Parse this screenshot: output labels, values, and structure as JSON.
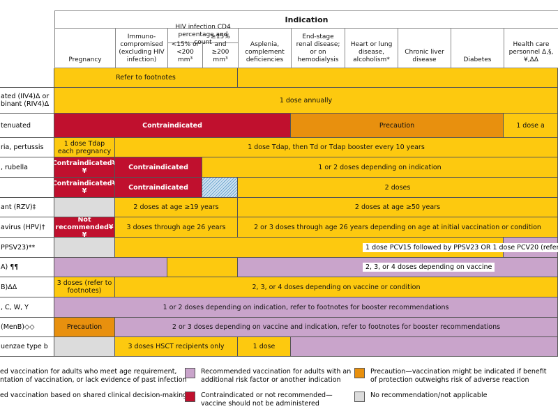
{
  "header": {
    "title": "Indication",
    "hiv_group": "HIV infection CD4 percentage and count"
  },
  "columns": [
    "Pregnancy",
    "Immuno-compromised (excluding HIV infection)",
    "<15% or <200 mm³",
    "≥15% and ≥200 mm³",
    "Asplenia, complement deficiencies",
    "End-stage renal disease; or on hemodialysis",
    "Heart or lung disease, alcoholism*",
    "Chronic liver disease",
    "Diabetes",
    "Health care personnel Δ,§,¥,ΔΔ"
  ],
  "rows": [
    {
      "cells": [
        {
          "text": "Refer to footnotes",
          "span": 4,
          "fill": "yellow"
        },
        {
          "span": 6,
          "fill": "yellow"
        }
      ]
    },
    {
      "label": [
        "ated (IIV4)Δ or",
        "binant (RIV4)Δ"
      ],
      "cells": [
        {
          "text": "1 dose annually",
          "span": 10,
          "fill": "yellow"
        }
      ]
    },
    {
      "label": [
        "tenuated"
      ],
      "cells": [
        {
          "text": "Contraindicated",
          "span": 5,
          "fill": "red"
        },
        {
          "text": "Precaution",
          "span": 4,
          "fill": "orange"
        },
        {
          "text": "1 dose a",
          "span": 1,
          "fill": "yellow"
        }
      ]
    },
    {
      "label": [
        "ria, pertussis"
      ],
      "cells": [
        {
          "text": "1 dose Tdap each pregnancy",
          "span": 1,
          "fill": "yellow"
        },
        {
          "text": "1 dose Tdap, then Td or Tdap booster every 10 years",
          "span": 9,
          "fill": "yellow"
        }
      ]
    },
    {
      "label": [
        ", rubella"
      ],
      "cells": [
        {
          "text": "Contraindicated¥¥",
          "span": 1,
          "fill": "red"
        },
        {
          "text": "Contraindicated",
          "span": 2,
          "fill": "red"
        },
        {
          "text": "1 or 2 doses depending on indication",
          "span": 7,
          "fill": "yellow"
        }
      ]
    },
    {
      "cells": [
        {
          "text": "Contraindicated¥¥",
          "span": 1,
          "fill": "red"
        },
        {
          "text": "Contraindicated",
          "span": 2,
          "fill": "red"
        },
        {
          "span": 1,
          "fill": "hatched"
        },
        {
          "text": "2 doses",
          "span": 6,
          "fill": "yellow"
        }
      ]
    },
    {
      "label": [
        "ant (RZV)‡"
      ],
      "cells": [
        {
          "span": 1,
          "fill": "gray"
        },
        {
          "text": "2 doses at age ≥19 years",
          "span": 3,
          "fill": "yellow"
        },
        {
          "text": "2 doses at age ≥50 years",
          "span": 6,
          "fill": "yellow"
        }
      ]
    },
    {
      "label": [
        "avirus (HPV)†"
      ],
      "cells": [
        {
          "text": "Not recommended¥¥",
          "span": 1,
          "fill": "red"
        },
        {
          "text": "3 doses through age 26 years",
          "span": 3,
          "fill": "yellow"
        },
        {
          "text": "2 or 3 doses through age 26 years depending on age at initial vaccination or condition",
          "span": 6,
          "fill": "yellow"
        }
      ]
    },
    {
      "label": [
        "PPSV23)**"
      ],
      "cells": [
        {
          "span": 1,
          "fill": "gray"
        },
        {
          "span": 8,
          "fill": "yellow"
        },
        {
          "span": 1,
          "fill": "purple"
        }
      ],
      "note": "1 dose PCV15 followed by PPSV23 OR 1 dose PCV20 (refer to fo"
    },
    {
      "label": [
        "A) ¶¶"
      ],
      "cells": [
        {
          "span": 2,
          "fill": "purple"
        },
        {
          "span": 2,
          "fill": "yellow"
        },
        {
          "span": 6,
          "fill": "purple"
        }
      ],
      "note": "2, 3, or 4 doses depending on vaccine"
    },
    {
      "label": [
        "B)ΔΔ"
      ],
      "cells": [
        {
          "text": "3 doses (refer to footnotes)",
          "span": 1,
          "fill": "yellow"
        },
        {
          "text": "2, 3, or 4 doses depending on vaccine or condition",
          "span": 9,
          "fill": "yellow"
        }
      ]
    },
    {
      "label": [
        ", C, W, Y"
      ],
      "cells": [
        {
          "text": "1 or 2 doses depending on indication, refer to footnotes for booster recommendations",
          "span": 10,
          "fill": "purple"
        }
      ]
    },
    {
      "label": [
        "(MenB)◇◇"
      ],
      "cells": [
        {
          "text": "Precaution",
          "span": 1,
          "fill": "orange"
        },
        {
          "text": "2 or 3 doses depending on vaccine and indication, refer to footnotes for booster recommendations",
          "span": 9,
          "fill": "purple"
        }
      ]
    },
    {
      "label": [
        "uenzae type b"
      ],
      "cells": [
        {
          "span": 1,
          "fill": "gray"
        },
        {
          "text": "3 doses HSCT recipients only",
          "span": 3,
          "fill": "yellow"
        },
        {
          "text": "1 dose",
          "span": 1,
          "fill": "yellow"
        },
        {
          "span": 5,
          "fill": "purple"
        }
      ]
    }
  ],
  "legend": [
    {
      "fill": "yellow",
      "lines": [
        "ed vaccination for adults who meet age requirement,",
        "ntation of vaccination, or lack evidence of past infection"
      ]
    },
    {
      "fill": "purple",
      "lines": [
        "Recommended vaccination for adults with an",
        "additional risk factor or another indication"
      ]
    },
    {
      "fill": "orange",
      "lines": [
        "Precaution—vaccination might be indicated if benefit",
        "of protection outweighs risk of adverse reaction"
      ]
    },
    {
      "fill": "blue",
      "lines": [
        "ed vaccination based on shared clinical decision-making"
      ]
    },
    {
      "fill": "red",
      "lines": [
        "Contraindicated or not recommended—",
        "vaccine should not be administered"
      ]
    },
    {
      "fill": "gray",
      "lines": [
        "No recommendation/not applicable"
      ]
    }
  ]
}
